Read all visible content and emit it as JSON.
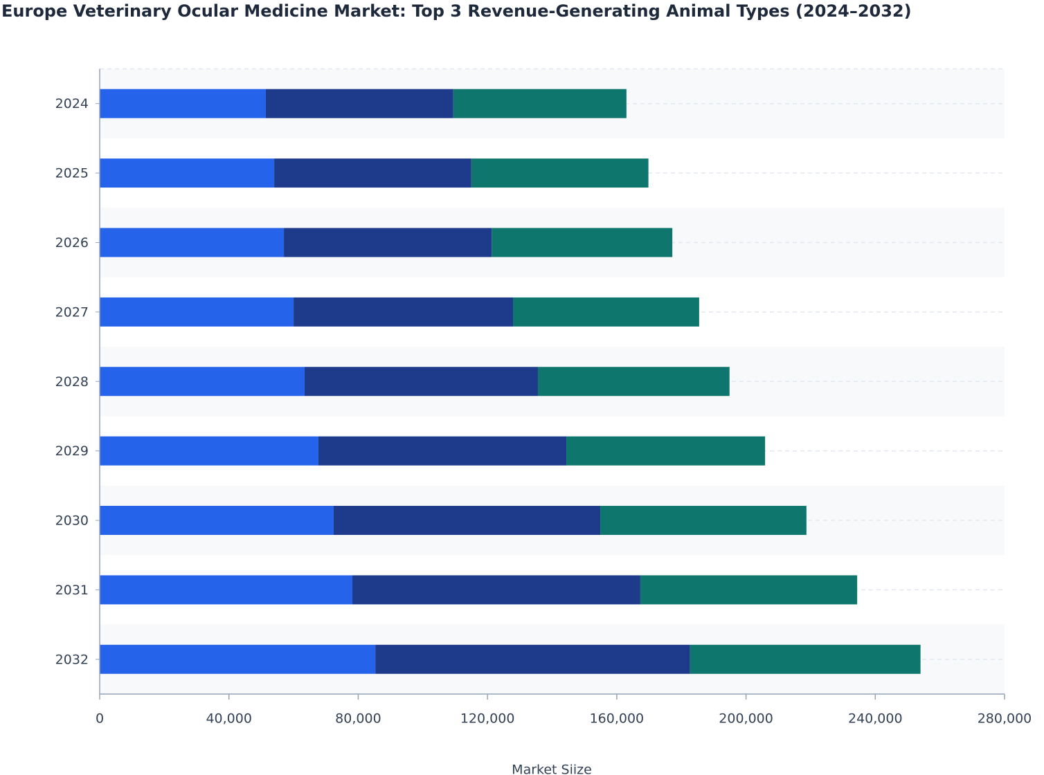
{
  "chart_data": {
    "type": "stacked-bar-horizontal",
    "title": "Europe Veterinary Ocular Medicine Market: Top 3 Revenue-Generating Animal Types (2024–2032)",
    "x_label": "Market Siize",
    "categories": [
      "2024",
      "2025",
      "2026",
      "2027",
      "2028",
      "2029",
      "2030",
      "2031",
      "2032"
    ],
    "series": [
      {
        "color": "#2563eb",
        "values": [
          51400,
          54000,
          57000,
          60000,
          63400,
          67700,
          72400,
          78200,
          85300
        ]
      },
      {
        "color": "#1e3a8a",
        "values": [
          58000,
          61000,
          64300,
          67900,
          72200,
          76700,
          82500,
          89100,
          97400
        ]
      },
      {
        "color": "#0f766e",
        "values": [
          53600,
          54800,
          55900,
          57600,
          59300,
          61500,
          63800,
          67100,
          71300
        ]
      }
    ],
    "xlim": [
      0,
      280000
    ],
    "xticks": [
      0,
      {
        "value": 40000,
        "label": "40,000"
      },
      {
        "value": 80000,
        "label": "80,000"
      },
      {
        "value": 120000,
        "label": "120,000"
      },
      {
        "value": 160000,
        "label": "160,000"
      },
      {
        "value": 200000,
        "label": "200,000"
      },
      {
        "value": 240000,
        "label": "240,000"
      },
      {
        "value": 280000,
        "label": "280,000"
      }
    ],
    "grid": true
  }
}
